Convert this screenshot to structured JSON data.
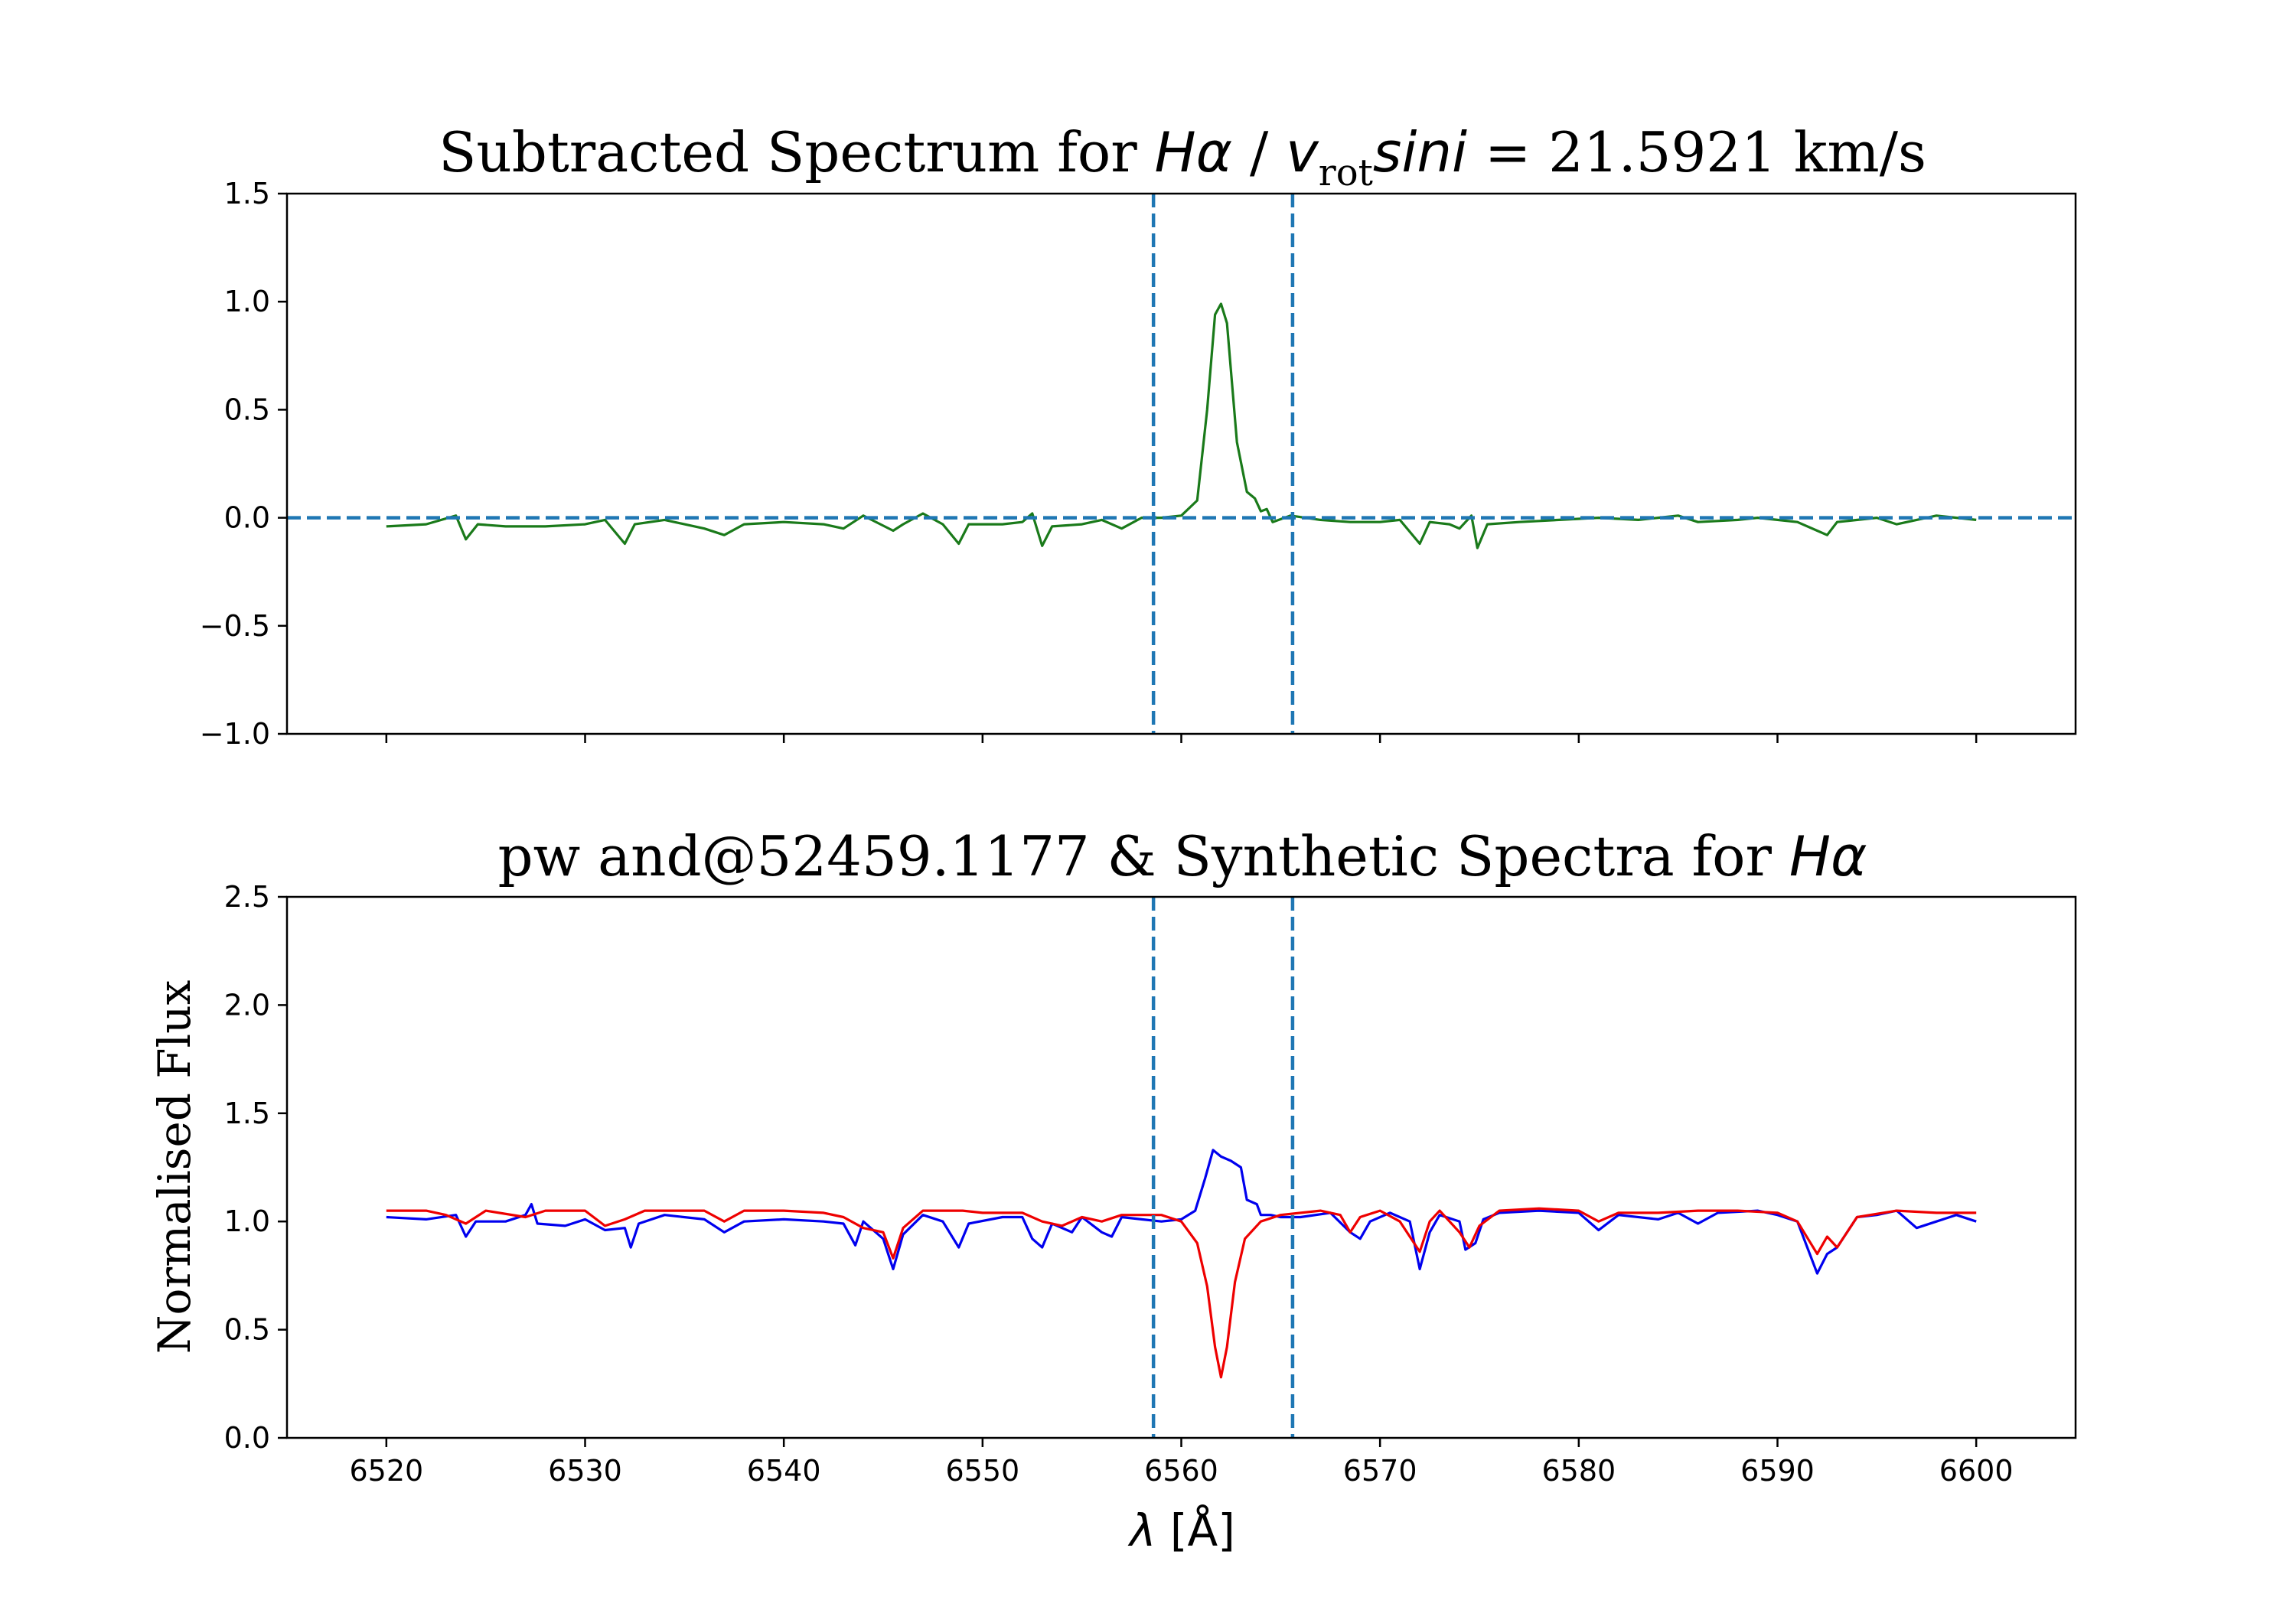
{
  "chart_data": [
    {
      "type": "line",
      "title_prefix": "Subtracted Spectrum for ",
      "title_line": "Hα",
      "title_sep": " / ",
      "title_v": "v",
      "title_sub": "rot",
      "title_sini": "sini",
      "title_value": " = 21.5921 km/s",
      "xlim": [
        6515,
        6605
      ],
      "ylim": [
        -1.0,
        1.5
      ],
      "yticks": [
        "1.5",
        "1.0",
        "0.5",
        "0.0",
        "−0.5",
        "−1.0"
      ],
      "ytick_values": [
        1.5,
        1.0,
        0.5,
        0.0,
        -0.5,
        -1.0
      ],
      "xtick_values": [
        6520,
        6530,
        6540,
        6550,
        6560,
        6570,
        6580,
        6590,
        6600
      ],
      "vlines": [
        6558.6,
        6565.6
      ],
      "hline": 0.0,
      "series": [
        {
          "name": "subtracted",
          "color": "#1a7a1a",
          "points": [
            [
              6520,
              -0.04
            ],
            [
              6522,
              -0.03
            ],
            [
              6523.5,
              0.01
            ],
            [
              6524,
              -0.1
            ],
            [
              6524.6,
              -0.03
            ],
            [
              6526,
              -0.04
            ],
            [
              6528,
              -0.04
            ],
            [
              6530,
              -0.03
            ],
            [
              6531,
              -0.01
            ],
            [
              6532,
              -0.12
            ],
            [
              6532.5,
              -0.03
            ],
            [
              6534,
              -0.01
            ],
            [
              6536,
              -0.05
            ],
            [
              6537,
              -0.08
            ],
            [
              6538,
              -0.03
            ],
            [
              6540,
              -0.02
            ],
            [
              6542,
              -0.03
            ],
            [
              6543,
              -0.05
            ],
            [
              6544,
              0.01
            ],
            [
              6545.5,
              -0.06
            ],
            [
              6546,
              -0.03
            ],
            [
              6547,
              0.02
            ],
            [
              6548,
              -0.03
            ],
            [
              6548.8,
              -0.12
            ],
            [
              6549.3,
              -0.03
            ],
            [
              6551,
              -0.03
            ],
            [
              6552,
              -0.02
            ],
            [
              6552.5,
              0.02
            ],
            [
              6553,
              -0.13
            ],
            [
              6553.5,
              -0.04
            ],
            [
              6555,
              -0.03
            ],
            [
              6556,
              -0.01
            ],
            [
              6557,
              -0.05
            ],
            [
              6558,
              0.0
            ],
            [
              6559,
              0.0
            ],
            [
              6560,
              0.01
            ],
            [
              6560.8,
              0.08
            ],
            [
              6561.3,
              0.5
            ],
            [
              6561.7,
              0.94
            ],
            [
              6562.0,
              0.99
            ],
            [
              6562.3,
              0.9
            ],
            [
              6562.8,
              0.35
            ],
            [
              6563.3,
              0.12
            ],
            [
              6563.7,
              0.09
            ],
            [
              6564,
              0.03
            ],
            [
              6564.3,
              0.04
            ],
            [
              6564.6,
              -0.02
            ],
            [
              6565.5,
              0.01
            ],
            [
              6567,
              -0.01
            ],
            [
              6568.5,
              -0.02
            ],
            [
              6570,
              -0.02
            ],
            [
              6571,
              -0.01
            ],
            [
              6572,
              -0.12
            ],
            [
              6572.5,
              -0.02
            ],
            [
              6573.5,
              -0.03
            ],
            [
              6574,
              -0.05
            ],
            [
              6574.6,
              0.01
            ],
            [
              6574.9,
              -0.14
            ],
            [
              6575.4,
              -0.03
            ],
            [
              6577,
              -0.02
            ],
            [
              6579,
              -0.01
            ],
            [
              6581,
              0.0
            ],
            [
              6583,
              -0.01
            ],
            [
              6584,
              0.0
            ],
            [
              6585,
              0.01
            ],
            [
              6586,
              -0.02
            ],
            [
              6588,
              -0.01
            ],
            [
              6589,
              0.0
            ],
            [
              6590,
              -0.01
            ],
            [
              6591,
              -0.02
            ],
            [
              6592,
              -0.06
            ],
            [
              6592.5,
              -0.08
            ],
            [
              6593,
              -0.02
            ],
            [
              6595,
              0.0
            ],
            [
              6596,
              -0.03
            ],
            [
              6597,
              -0.01
            ],
            [
              6598,
              0.01
            ],
            [
              6600,
              -0.01
            ]
          ]
        }
      ]
    },
    {
      "type": "line",
      "title_prefix": "pw and@52459.1177  &  Synthetic Spectra for ",
      "title_line": "Hα",
      "ylabel": "Normalised Flux",
      "xlabel_symbol": "λ",
      "xlabel_unit": "  [Å]",
      "xlim": [
        6515,
        6605
      ],
      "ylim": [
        0.0,
        2.5
      ],
      "yticks": [
        "2.5",
        "2.0",
        "1.5",
        "1.0",
        "0.5",
        "0.0"
      ],
      "ytick_values": [
        2.5,
        2.0,
        1.5,
        1.0,
        0.5,
        0.0
      ],
      "xticks": [
        "6520",
        "6530",
        "6540",
        "6550",
        "6560",
        "6570",
        "6580",
        "6590",
        "6600"
      ],
      "xtick_values": [
        6520,
        6530,
        6540,
        6550,
        6560,
        6570,
        6580,
        6590,
        6600
      ],
      "vlines": [
        6558.6,
        6565.6
      ],
      "series": [
        {
          "name": "observed",
          "color": "#0000ee",
          "points": [
            [
              6520,
              1.02
            ],
            [
              6522,
              1.01
            ],
            [
              6523.5,
              1.03
            ],
            [
              6524,
              0.93
            ],
            [
              6524.5,
              1.0
            ],
            [
              6526,
              1.0
            ],
            [
              6527,
              1.03
            ],
            [
              6527.3,
              1.08
            ],
            [
              6527.6,
              0.99
            ],
            [
              6529,
              0.98
            ],
            [
              6530,
              1.01
            ],
            [
              6531,
              0.96
            ],
            [
              6532,
              0.97
            ],
            [
              6532.3,
              0.88
            ],
            [
              6532.7,
              0.99
            ],
            [
              6534,
              1.03
            ],
            [
              6536,
              1.01
            ],
            [
              6537,
              0.95
            ],
            [
              6538,
              1.0
            ],
            [
              6540,
              1.01
            ],
            [
              6542,
              1.0
            ],
            [
              6543,
              0.99
            ],
            [
              6543.6,
              0.89
            ],
            [
              6544,
              1.0
            ],
            [
              6545,
              0.92
            ],
            [
              6545.5,
              0.78
            ],
            [
              6546,
              0.94
            ],
            [
              6547,
              1.03
            ],
            [
              6548,
              1.0
            ],
            [
              6548.8,
              0.88
            ],
            [
              6549.3,
              0.99
            ],
            [
              6551,
              1.02
            ],
            [
              6552,
              1.02
            ],
            [
              6552.5,
              0.92
            ],
            [
              6553,
              0.88
            ],
            [
              6553.5,
              0.99
            ],
            [
              6554.5,
              0.95
            ],
            [
              6555,
              1.02
            ],
            [
              6556,
              0.95
            ],
            [
              6556.5,
              0.93
            ],
            [
              6557,
              1.02
            ],
            [
              6558,
              1.01
            ],
            [
              6559,
              1.0
            ],
            [
              6560,
              1.01
            ],
            [
              6560.7,
              1.05
            ],
            [
              6561.2,
              1.2
            ],
            [
              6561.6,
              1.33
            ],
            [
              6562,
              1.3
            ],
            [
              6562.5,
              1.28
            ],
            [
              6563,
              1.25
            ],
            [
              6563.3,
              1.1
            ],
            [
              6563.8,
              1.08
            ],
            [
              6564,
              1.03
            ],
            [
              6564.5,
              1.03
            ],
            [
              6565,
              1.02
            ],
            [
              6566,
              1.02
            ],
            [
              6567.5,
              1.04
            ],
            [
              6568.5,
              0.95
            ],
            [
              6569,
              0.92
            ],
            [
              6569.5,
              1.0
            ],
            [
              6570.5,
              1.04
            ],
            [
              6571.5,
              1.0
            ],
            [
              6572,
              0.78
            ],
            [
              6572.5,
              0.95
            ],
            [
              6573,
              1.03
            ],
            [
              6574,
              1.0
            ],
            [
              6574.3,
              0.87
            ],
            [
              6574.8,
              0.9
            ],
            [
              6575.2,
              1.01
            ],
            [
              6576,
              1.04
            ],
            [
              6578,
              1.05
            ],
            [
              6580,
              1.04
            ],
            [
              6581,
              0.96
            ],
            [
              6582,
              1.03
            ],
            [
              6584,
              1.01
            ],
            [
              6585,
              1.04
            ],
            [
              6586,
              0.99
            ],
            [
              6587,
              1.04
            ],
            [
              6589,
              1.05
            ],
            [
              6590,
              1.03
            ],
            [
              6591,
              1.0
            ],
            [
              6592,
              0.76
            ],
            [
              6592.5,
              0.85
            ],
            [
              6593,
              0.88
            ],
            [
              6594,
              1.02
            ],
            [
              6595,
              1.03
            ],
            [
              6596,
              1.05
            ],
            [
              6597,
              0.97
            ],
            [
              6598,
              1.0
            ],
            [
              6599,
              1.03
            ],
            [
              6600,
              1.0
            ]
          ]
        },
        {
          "name": "synthetic",
          "color": "#ee0000",
          "points": [
            [
              6520,
              1.05
            ],
            [
              6522,
              1.05
            ],
            [
              6523,
              1.03
            ],
            [
              6524,
              0.99
            ],
            [
              6525,
              1.05
            ],
            [
              6527,
              1.02
            ],
            [
              6528,
              1.05
            ],
            [
              6530,
              1.05
            ],
            [
              6531,
              0.98
            ],
            [
              6532,
              1.01
            ],
            [
              6533,
              1.05
            ],
            [
              6536,
              1.05
            ],
            [
              6537,
              1.0
            ],
            [
              6538,
              1.05
            ],
            [
              6540,
              1.05
            ],
            [
              6542,
              1.04
            ],
            [
              6543,
              1.02
            ],
            [
              6544,
              0.97
            ],
            [
              6545,
              0.95
            ],
            [
              6545.5,
              0.83
            ],
            [
              6546,
              0.97
            ],
            [
              6547,
              1.05
            ],
            [
              6549,
              1.05
            ],
            [
              6550,
              1.04
            ],
            [
              6552,
              1.04
            ],
            [
              6553,
              1.0
            ],
            [
              6554,
              0.98
            ],
            [
              6555,
              1.02
            ],
            [
              6556,
              1.0
            ],
            [
              6557,
              1.03
            ],
            [
              6558,
              1.03
            ],
            [
              6559,
              1.03
            ],
            [
              6560,
              1.0
            ],
            [
              6560.8,
              0.9
            ],
            [
              6561.3,
              0.7
            ],
            [
              6561.7,
              0.42
            ],
            [
              6562.0,
              0.28
            ],
            [
              6562.3,
              0.42
            ],
            [
              6562.7,
              0.72
            ],
            [
              6563.2,
              0.92
            ],
            [
              6564,
              1.0
            ],
            [
              6565,
              1.03
            ],
            [
              6567,
              1.05
            ],
            [
              6568,
              1.03
            ],
            [
              6568.5,
              0.95
            ],
            [
              6569,
              1.02
            ],
            [
              6570,
              1.05
            ],
            [
              6571,
              1.0
            ],
            [
              6572,
              0.86
            ],
            [
              6572.5,
              1.0
            ],
            [
              6573,
              1.05
            ],
            [
              6574,
              0.95
            ],
            [
              6574.5,
              0.88
            ],
            [
              6575,
              0.98
            ],
            [
              6576,
              1.05
            ],
            [
              6578,
              1.06
            ],
            [
              6580,
              1.05
            ],
            [
              6581,
              1.0
            ],
            [
              6582,
              1.04
            ],
            [
              6584,
              1.04
            ],
            [
              6586,
              1.05
            ],
            [
              6588,
              1.05
            ],
            [
              6590,
              1.04
            ],
            [
              6591,
              1.0
            ],
            [
              6592,
              0.85
            ],
            [
              6592.5,
              0.93
            ],
            [
              6593,
              0.88
            ],
            [
              6594,
              1.02
            ],
            [
              6596,
              1.05
            ],
            [
              6598,
              1.04
            ],
            [
              6600,
              1.04
            ]
          ]
        }
      ]
    }
  ]
}
